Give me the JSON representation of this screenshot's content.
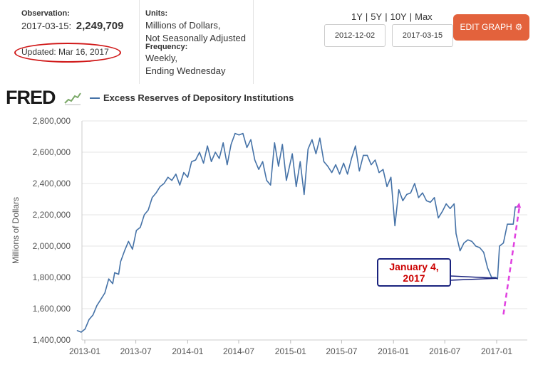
{
  "header": {
    "observation_label": "Observation:",
    "observation_date": "2017-03-15:",
    "observation_value": "2,249,709",
    "updated": "Updated: Mar 16, 2017",
    "units_label": "Units:",
    "units_line1": "Millions of Dollars,",
    "units_line2": "Not Seasonally Adjusted",
    "frequency_label": "Frequency:",
    "frequency_line1": "Weekly,",
    "frequency_line2": "Ending Wednesday",
    "range_1y": "1Y",
    "range_5y": "5Y",
    "range_10y": "10Y",
    "range_max": "Max",
    "range_separator": "|",
    "start_date": "2012-12-02",
    "end_date": "2017-03-15",
    "edit_button": "EDIT GRAPH",
    "edit_button_icon": "gear-icon"
  },
  "brand": {
    "logo": "FRED",
    "series_name": "Excess Reserves of Depository Institutions"
  },
  "colors": {
    "series": "#4572a7",
    "accent_button": "#e3623c",
    "annotation_red": "#cc0000",
    "annotation_box": "#1a237e",
    "trend_arrow": "#e040e0"
  },
  "chart_data": {
    "type": "line",
    "title": "",
    "xlabel": "",
    "ylabel": "Millions of Dollars",
    "ylim": [
      1400000,
      2800000
    ],
    "xlim": [
      "2012-12-02",
      "2017-03-15"
    ],
    "y_ticks": [
      "1,400,000",
      "1,600,000",
      "1,800,000",
      "2,000,000",
      "2,200,000",
      "2,400,000",
      "2,600,000",
      "2,800,000"
    ],
    "x_ticks": [
      "2013-01",
      "2013-07",
      "2014-01",
      "2014-07",
      "2015-01",
      "2015-07",
      "2016-01",
      "2016-07",
      "2017-01"
    ],
    "grid": "horizontal",
    "legend": "top-left",
    "series": [
      {
        "name": "Excess Reserves of Depository Institutions",
        "points": [
          [
            "2012-12-05",
            1460000
          ],
          [
            "2012-12-19",
            1450000
          ],
          [
            "2013-01-02",
            1470000
          ],
          [
            "2013-01-16",
            1530000
          ],
          [
            "2013-01-30",
            1560000
          ],
          [
            "2013-02-13",
            1620000
          ],
          [
            "2013-02-27",
            1660000
          ],
          [
            "2013-03-13",
            1700000
          ],
          [
            "2013-03-27",
            1790000
          ],
          [
            "2013-04-10",
            1760000
          ],
          [
            "2013-04-17",
            1830000
          ],
          [
            "2013-05-01",
            1820000
          ],
          [
            "2013-05-08",
            1900000
          ],
          [
            "2013-05-22",
            1970000
          ],
          [
            "2013-06-05",
            2030000
          ],
          [
            "2013-06-19",
            1980000
          ],
          [
            "2013-07-03",
            2100000
          ],
          [
            "2013-07-17",
            2120000
          ],
          [
            "2013-07-31",
            2200000
          ],
          [
            "2013-08-14",
            2230000
          ],
          [
            "2013-08-28",
            2310000
          ],
          [
            "2013-09-11",
            2340000
          ],
          [
            "2013-09-25",
            2380000
          ],
          [
            "2013-10-09",
            2400000
          ],
          [
            "2013-10-23",
            2440000
          ],
          [
            "2013-11-06",
            2420000
          ],
          [
            "2013-11-20",
            2460000
          ],
          [
            "2013-12-04",
            2390000
          ],
          [
            "2013-12-18",
            2470000
          ],
          [
            "2014-01-01",
            2440000
          ],
          [
            "2014-01-15",
            2540000
          ],
          [
            "2014-01-29",
            2550000
          ],
          [
            "2014-02-12",
            2600000
          ],
          [
            "2014-02-26",
            2530000
          ],
          [
            "2014-03-12",
            2640000
          ],
          [
            "2014-03-26",
            2540000
          ],
          [
            "2014-04-09",
            2600000
          ],
          [
            "2014-04-23",
            2560000
          ],
          [
            "2014-05-07",
            2660000
          ],
          [
            "2014-05-21",
            2520000
          ],
          [
            "2014-06-04",
            2650000
          ],
          [
            "2014-06-18",
            2720000
          ],
          [
            "2014-07-02",
            2710000
          ],
          [
            "2014-07-16",
            2720000
          ],
          [
            "2014-07-30",
            2630000
          ],
          [
            "2014-08-13",
            2680000
          ],
          [
            "2014-08-27",
            2550000
          ],
          [
            "2014-09-10",
            2490000
          ],
          [
            "2014-09-24",
            2540000
          ],
          [
            "2014-10-08",
            2420000
          ],
          [
            "2014-10-22",
            2390000
          ],
          [
            "2014-11-05",
            2660000
          ],
          [
            "2014-11-19",
            2510000
          ],
          [
            "2014-12-03",
            2650000
          ],
          [
            "2014-12-17",
            2420000
          ],
          [
            "2015-01-07",
            2590000
          ],
          [
            "2015-01-21",
            2380000
          ],
          [
            "2015-02-04",
            2540000
          ],
          [
            "2015-02-18",
            2330000
          ],
          [
            "2015-03-04",
            2620000
          ],
          [
            "2015-03-18",
            2680000
          ],
          [
            "2015-04-01",
            2590000
          ],
          [
            "2015-04-15",
            2690000
          ],
          [
            "2015-04-29",
            2540000
          ],
          [
            "2015-05-13",
            2510000
          ],
          [
            "2015-05-27",
            2470000
          ],
          [
            "2015-06-10",
            2520000
          ],
          [
            "2015-06-24",
            2460000
          ],
          [
            "2015-07-08",
            2530000
          ],
          [
            "2015-07-22",
            2460000
          ],
          [
            "2015-08-05",
            2560000
          ],
          [
            "2015-08-19",
            2640000
          ],
          [
            "2015-09-02",
            2480000
          ],
          [
            "2015-09-16",
            2580000
          ],
          [
            "2015-09-30",
            2580000
          ],
          [
            "2015-10-14",
            2520000
          ],
          [
            "2015-10-28",
            2550000
          ],
          [
            "2015-11-11",
            2470000
          ],
          [
            "2015-11-25",
            2490000
          ],
          [
            "2015-12-09",
            2380000
          ],
          [
            "2015-12-23",
            2440000
          ],
          [
            "2016-01-06",
            2130000
          ],
          [
            "2016-01-20",
            2360000
          ],
          [
            "2016-02-03",
            2290000
          ],
          [
            "2016-02-17",
            2330000
          ],
          [
            "2016-03-02",
            2340000
          ],
          [
            "2016-03-16",
            2400000
          ],
          [
            "2016-03-30",
            2310000
          ],
          [
            "2016-04-13",
            2340000
          ],
          [
            "2016-04-27",
            2290000
          ],
          [
            "2016-05-11",
            2280000
          ],
          [
            "2016-05-25",
            2310000
          ],
          [
            "2016-06-08",
            2180000
          ],
          [
            "2016-06-22",
            2220000
          ],
          [
            "2016-07-06",
            2270000
          ],
          [
            "2016-07-20",
            2240000
          ],
          [
            "2016-08-03",
            2270000
          ],
          [
            "2016-08-10",
            2080000
          ],
          [
            "2016-08-24",
            1970000
          ],
          [
            "2016-09-07",
            2020000
          ],
          [
            "2016-09-21",
            2040000
          ],
          [
            "2016-10-05",
            2030000
          ],
          [
            "2016-10-19",
            2000000
          ],
          [
            "2016-11-02",
            1990000
          ],
          [
            "2016-11-16",
            1960000
          ],
          [
            "2016-11-30",
            1860000
          ],
          [
            "2016-12-14",
            1800000
          ],
          [
            "2016-12-28",
            1800000
          ],
          [
            "2017-01-04",
            1790000
          ],
          [
            "2017-01-11",
            2000000
          ],
          [
            "2017-01-25",
            2020000
          ],
          [
            "2017-02-08",
            2140000
          ],
          [
            "2017-02-22",
            2140000
          ],
          [
            "2017-03-01",
            2140000
          ],
          [
            "2017-03-08",
            2250000
          ],
          [
            "2017-03-15",
            2249709
          ]
        ]
      }
    ],
    "annotations": [
      {
        "text_line1": "January 4,",
        "text_line2": "2017",
        "date": "2017-01-04",
        "value": 1790000
      }
    ],
    "trend_arrow": {
      "from": [
        "2017-01-25",
        1790000
      ],
      "to": [
        "2017-03-22",
        2260000
      ]
    }
  }
}
